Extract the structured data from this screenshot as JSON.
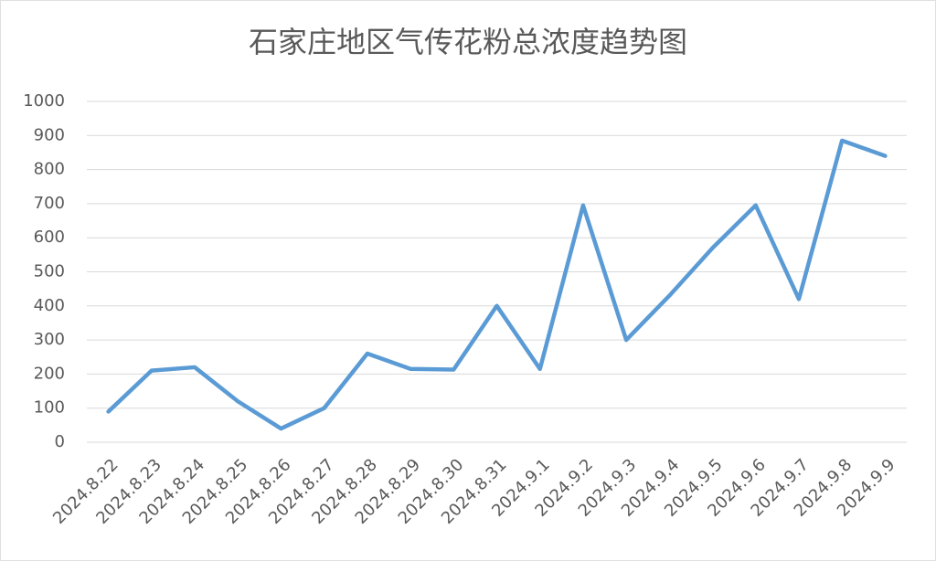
{
  "chart_data": {
    "type": "line",
    "title": "石家庄地区气传花粉总浓度趋势图",
    "categories": [
      "2024.8.22",
      "2024.8.23",
      "2024.8.24",
      "2024.8.25",
      "2024.8.26",
      "2024.8.27",
      "2024.8.28",
      "2024.8.29",
      "2024.8.30",
      "2024.8.31",
      "2024.9.1",
      "2024.9.2",
      "2024.9.3",
      "2024.9.4",
      "2024.9.5",
      "2024.9.6",
      "2024.9.7",
      "2024.9.8",
      "2024.9.9"
    ],
    "values": [
      90,
      210,
      220,
      120,
      40,
      100,
      260,
      215,
      213,
      400,
      215,
      695,
      300,
      430,
      570,
      695,
      420,
      885,
      840
    ],
    "color": "#5b9bd5",
    "ylim": [
      0,
      1000
    ],
    "yticks": [
      0,
      100,
      200,
      300,
      400,
      500,
      600,
      700,
      800,
      900,
      1000
    ],
    "grid": true
  }
}
